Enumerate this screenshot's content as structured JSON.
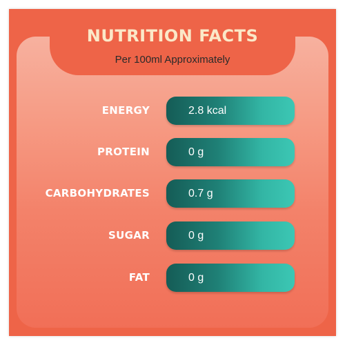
{
  "header": {
    "title": "NUTRITION FACTS",
    "subtitle": "Per 100ml Approximately"
  },
  "nutrients": [
    {
      "label": "ENERGY",
      "value": "2.8 kcal"
    },
    {
      "label": "PROTEIN",
      "value": "0 g"
    },
    {
      "label": "CARBOHYDRATES",
      "value": "0.7 g"
    },
    {
      "label": "SUGAR",
      "value": "0 g"
    },
    {
      "label": "FAT",
      "value": "0 g"
    }
  ],
  "colors": {
    "frame": "#ee6448",
    "title": "#fbe8c8",
    "pill_dark": "#155c56",
    "pill_light": "#3cc7b4"
  }
}
